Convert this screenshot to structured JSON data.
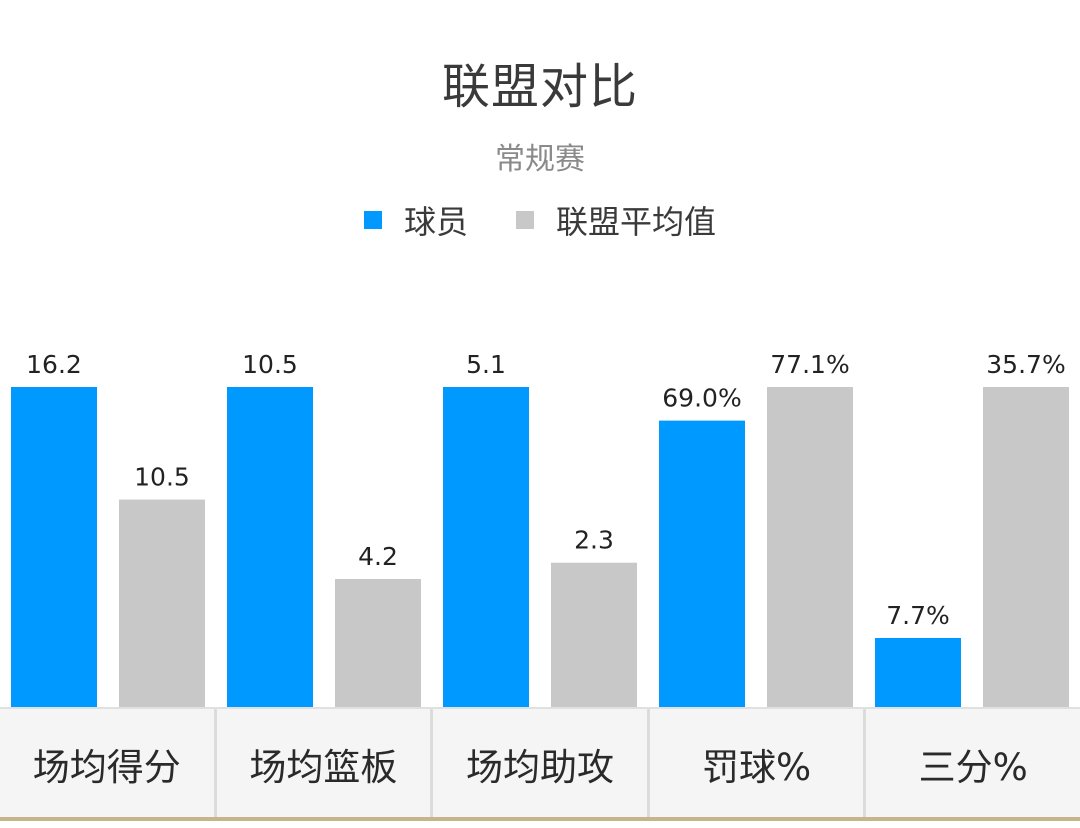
{
  "header": {
    "title": "联盟对比",
    "subtitle": "常规赛"
  },
  "legend": [
    {
      "label": "球员",
      "color": "#0099ff"
    },
    {
      "label": "联盟平均值",
      "color": "#c8c8c8"
    }
  ],
  "tabs": [
    {
      "label": "场均得分"
    },
    {
      "label": "场均篮板"
    },
    {
      "label": "场均助攻"
    },
    {
      "label": "罚球%"
    },
    {
      "label": "三分%"
    }
  ],
  "chart_data": {
    "type": "bar",
    "title": "联盟对比",
    "subtitle": "常规赛",
    "legend_position": "top-center",
    "grid": false,
    "categories": [
      "场均得分",
      "场均篮板",
      "场均助攻",
      "罚球%",
      "三分%"
    ],
    "series": [
      {
        "name": "球员",
        "color": "#0099ff",
        "values": [
          16.2,
          10.5,
          5.1,
          69.0,
          7.7
        ],
        "labels": [
          "16.2",
          "10.5",
          "5.1",
          "69.0%",
          "7.7%"
        ]
      },
      {
        "name": "联盟平均值",
        "color": "#c8c8c8",
        "values": [
          10.5,
          4.2,
          2.3,
          77.1,
          35.7
        ],
        "labels": [
          "10.5",
          "4.2",
          "2.3",
          "77.1%",
          "35.7%"
        ]
      }
    ]
  }
}
